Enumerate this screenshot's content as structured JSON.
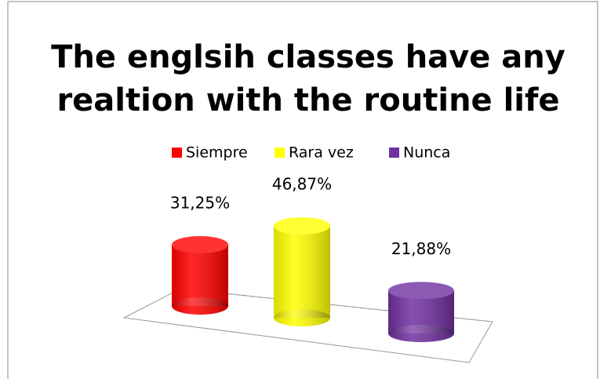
{
  "chart_data": {
    "type": "bar",
    "title": [
      "The englsih classes have any",
      "realtion with the routine life"
    ],
    "categories": [
      "Siempre",
      "Rara vez",
      "Nunca"
    ],
    "values": [
      31.25,
      46.87,
      21.88
    ],
    "value_labels": [
      "31,25%",
      "46,87%",
      "21,88%"
    ],
    "colors": [
      "#ff0000",
      "#ffff00",
      "#7030a0"
    ],
    "legend": "top"
  }
}
